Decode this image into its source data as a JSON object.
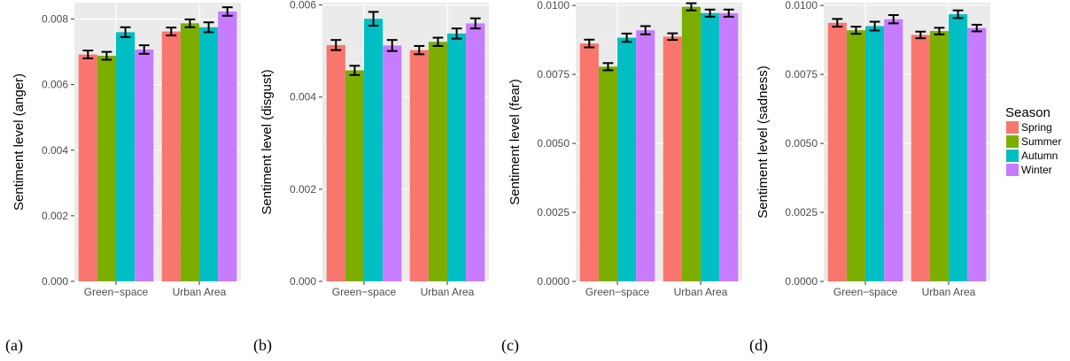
{
  "legend": {
    "title": "Season",
    "entries": [
      "Spring",
      "Summer",
      "Autumn",
      "Winter"
    ],
    "colors": [
      "#F8766D",
      "#7CAE00",
      "#00BFC4",
      "#C77CFF"
    ],
    "placement": "right"
  },
  "chart_data": [
    {
      "type": "bar",
      "caption": "(a)",
      "ylabel": "Sentiment level (anger)",
      "xlabel": "",
      "categories": [
        "Green−space",
        "Urban Area"
      ],
      "ylim": [
        0,
        0.0085
      ],
      "yticks": [
        0.0,
        0.002,
        0.004,
        0.006,
        0.008
      ],
      "ytick_labels": [
        "0.000",
        "0.002",
        "0.004",
        "0.006",
        "0.008"
      ],
      "series": [
        {
          "name": "Spring",
          "values": [
            0.00692,
            0.00762
          ],
          "errors": [
            0.00012,
            0.00012
          ]
        },
        {
          "name": "Summer",
          "values": [
            0.00688,
            0.00787
          ],
          "errors": [
            0.00012,
            0.00012
          ]
        },
        {
          "name": "Autumn",
          "values": [
            0.0076,
            0.00775
          ],
          "errors": [
            0.00015,
            0.00015
          ]
        },
        {
          "name": "Winter",
          "values": [
            0.00707,
            0.00823
          ],
          "errors": [
            0.00013,
            0.00013
          ]
        }
      ]
    },
    {
      "type": "bar",
      "caption": "(b)",
      "ylabel": "Sentiment level (disgust)",
      "xlabel": "",
      "categories": [
        "Green−space",
        "Urban Area"
      ],
      "ylim": [
        0,
        0.00605
      ],
      "yticks": [
        0.0,
        0.002,
        0.004,
        0.006
      ],
      "ytick_labels": [
        "0.000",
        "0.002",
        "0.004",
        "0.006"
      ],
      "series": [
        {
          "name": "Spring",
          "values": [
            0.00513,
            0.00502
          ],
          "errors": [
            0.00011,
            9e-05
          ]
        },
        {
          "name": "Summer",
          "values": [
            0.00458,
            0.0052
          ],
          "errors": [
            0.0001,
            9e-05
          ]
        },
        {
          "name": "Autumn",
          "values": [
            0.0057,
            0.00538
          ],
          "errors": [
            0.00015,
            0.00011
          ]
        },
        {
          "name": "Winter",
          "values": [
            0.00512,
            0.0056
          ],
          "errors": [
            0.00012,
            0.00011
          ]
        }
      ]
    },
    {
      "type": "bar",
      "caption": "(c)",
      "ylabel": "Sentiment level (fear)",
      "xlabel": "",
      "categories": [
        "Green−space",
        "Urban Area"
      ],
      "ylim": [
        0,
        0.0101
      ],
      "yticks": [
        0.0,
        0.0025,
        0.005,
        0.0075,
        0.01
      ],
      "ytick_labels": [
        "0.0000",
        "0.0025",
        "0.0050",
        "0.0075",
        "0.0100"
      ],
      "series": [
        {
          "name": "Spring",
          "values": [
            0.00862,
            0.00887
          ],
          "errors": [
            0.00014,
            0.00012
          ]
        },
        {
          "name": "Summer",
          "values": [
            0.00778,
            0.00995
          ],
          "errors": [
            0.00013,
            0.00013
          ]
        },
        {
          "name": "Autumn",
          "values": [
            0.00883,
            0.00972
          ],
          "errors": [
            0.00015,
            0.00013
          ]
        },
        {
          "name": "Winter",
          "values": [
            0.0091,
            0.00972
          ],
          "errors": [
            0.00015,
            0.00013
          ]
        }
      ]
    },
    {
      "type": "bar",
      "caption": "(d)",
      "ylabel": "Sentiment level (sadness)",
      "xlabel": "",
      "categories": [
        "Green−space",
        "Urban Area"
      ],
      "ylim": [
        0,
        0.0101
      ],
      "yticks": [
        0.0,
        0.0025,
        0.005,
        0.0075,
        0.01
      ],
      "ytick_labels": [
        "0.0000",
        "0.0025",
        "0.0050",
        "0.0075",
        "0.0100"
      ],
      "series": [
        {
          "name": "Spring",
          "values": [
            0.00937,
            0.00893
          ],
          "errors": [
            0.00014,
            0.00012
          ]
        },
        {
          "name": "Summer",
          "values": [
            0.0091,
            0.00907
          ],
          "errors": [
            0.00013,
            0.00012
          ]
        },
        {
          "name": "Autumn",
          "values": [
            0.00925,
            0.00968
          ],
          "errors": [
            0.00016,
            0.00014
          ]
        },
        {
          "name": "Winter",
          "values": [
            0.0095,
            0.00918
          ],
          "errors": [
            0.00015,
            0.00012
          ]
        }
      ]
    }
  ]
}
